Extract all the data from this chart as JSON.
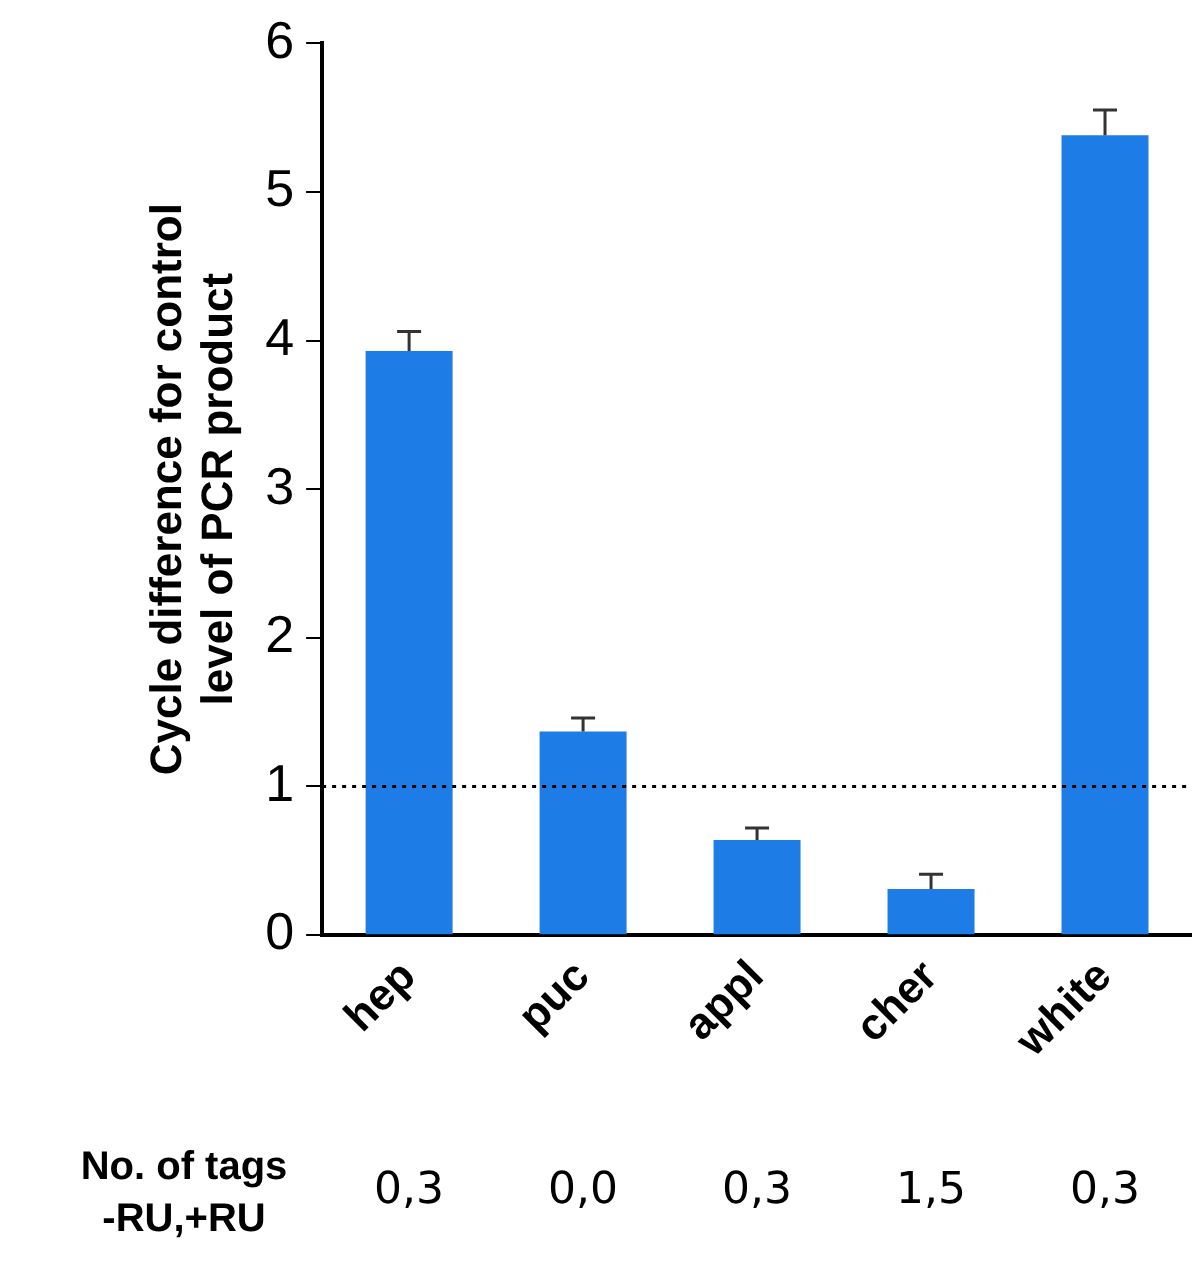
{
  "chart_data": {
    "type": "bar",
    "ylabel": "Cycle difference for control\nlevel of PCR product",
    "categories": [
      "hep",
      "puc",
      "appl",
      "cher",
      "white"
    ],
    "values": [
      3.93,
      1.37,
      0.64,
      0.31,
      5.38
    ],
    "errors": [
      [
        3.93,
        4.06
      ],
      [
        1.37,
        1.46
      ],
      [
        0.64,
        0.72
      ],
      [
        0.31,
        0.41
      ],
      [
        5.38,
        5.55
      ]
    ],
    "color": "#1e7ce6",
    "ylim": [
      0,
      6
    ],
    "yticks": [
      0,
      1,
      2,
      3,
      4,
      5,
      6
    ],
    "grid": false,
    "legend": false,
    "ref_lines": [
      {
        "axis": "y",
        "value": 1,
        "line_style": "dotted",
        "color": "#000000"
      }
    ],
    "annotations": [
      "No. of tags\n-RU,+RU",
      "0,3",
      "0,0",
      "0,3",
      "1,5",
      "0,3"
    ]
  }
}
